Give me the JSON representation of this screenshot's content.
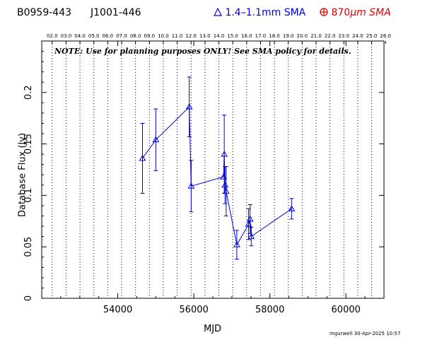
{
  "header": {
    "source_name": "B0959-443",
    "source_alias": "J1001-446",
    "legend_1mm": "1.4–1.1mm SMA",
    "legend_870_prefix": "870",
    "legend_870_unit": "μm SMA",
    "color_1mm": "#0000dd",
    "color_870": "#dd0000"
  },
  "note": "NOTE: Use for planning purposes ONLY!  See SMA policy for details.",
  "credit": "mgurwell 30-Apr-2025 10:57",
  "chart_data": {
    "type": "scatter",
    "xlabel": "MJD",
    "ylabel": "Database Flux (Jy)",
    "xlim": [
      52000,
      61000
    ],
    "ylim": [
      0,
      0.25
    ],
    "x_ticks": [
      54000,
      56000,
      58000,
      60000
    ],
    "y_ticks": [
      0,
      0.05,
      0.1,
      0.15,
      0.2
    ],
    "y_tick_labels": [
      "0",
      "0.05",
      "0.1",
      "0.15",
      "0.2"
    ],
    "top_axis_years": [
      "02.0",
      "03.0",
      "04.0",
      "05.0",
      "06.0",
      "07.0",
      "08.0",
      "09.0",
      "10.0",
      "11.0",
      "12.0",
      "13.0",
      "14.0",
      "15.0",
      "16.0",
      "17.0",
      "18.0",
      "19.0",
      "20.0",
      "21.0",
      "22.0",
      "23.0",
      "24.0",
      "25.0",
      "26.0"
    ],
    "top_axis_mjd_start": 52275,
    "top_axis_mjd_step": 365.25,
    "grid": "vertical dotted lines at year boundaries",
    "series": [
      {
        "name": "1.4–1.1mm SMA",
        "color": "#0000dd",
        "marker": "triangle",
        "connected": true,
        "points": [
          {
            "x": 54650,
            "y": 0.136,
            "err": 0.034
          },
          {
            "x": 55000,
            "y": 0.154,
            "err": 0.03
          },
          {
            "x": 55880,
            "y": 0.186,
            "err": 0.029
          },
          {
            "x": 55930,
            "y": 0.109,
            "err": 0.025
          },
          {
            "x": 56780,
            "y": 0.118,
            "err": 0.0
          },
          {
            "x": 56800,
            "y": 0.14,
            "err": 0.038
          },
          {
            "x": 56820,
            "y": 0.11,
            "err": 0.018
          },
          {
            "x": 56850,
            "y": 0.104,
            "err": 0.024
          },
          {
            "x": 57130,
            "y": 0.052,
            "err": 0.014
          },
          {
            "x": 57440,
            "y": 0.072,
            "err": 0.015
          },
          {
            "x": 57480,
            "y": 0.077,
            "err": 0.014
          },
          {
            "x": 57510,
            "y": 0.06,
            "err": 0.009
          },
          {
            "x": 58570,
            "y": 0.087,
            "err": 0.01
          }
        ]
      },
      {
        "name": "870μm SMA",
        "color": "#dd0000",
        "marker": "circle-plus",
        "connected": false,
        "points": []
      }
    ]
  }
}
